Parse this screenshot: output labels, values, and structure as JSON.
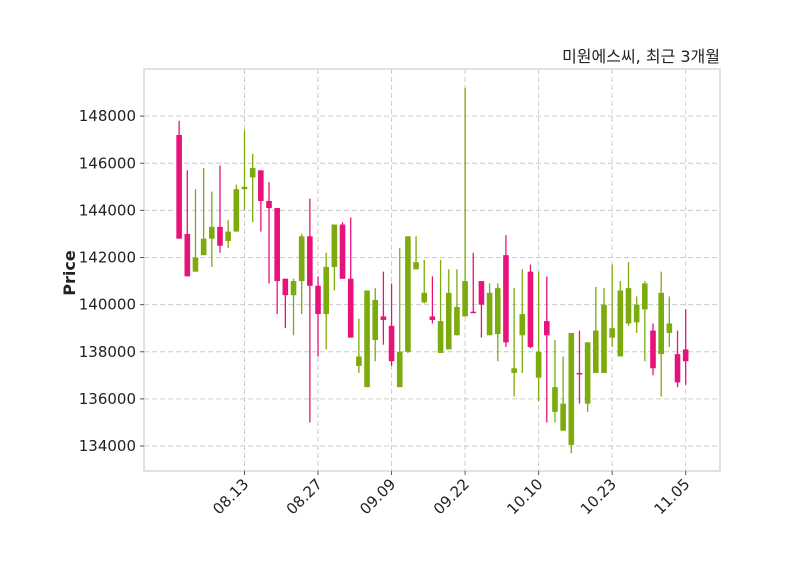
{
  "chart_data": {
    "type": "candlestick",
    "title": "미원에스씨, 최근 3개월",
    "xlabel": "",
    "ylabel": "Price",
    "ylim": [
      132940,
      150000
    ],
    "xlim": [
      -4.3,
      66.2
    ],
    "grid": true,
    "colors": {
      "up": "#7cab0d",
      "down": "#e8137a",
      "grid": "#cccccc",
      "frame": "#d9d9d9"
    },
    "yticks": [
      134000,
      136000,
      138000,
      140000,
      142000,
      144000,
      146000,
      148000
    ],
    "xticks": [
      {
        "index": 8,
        "label": "08.13"
      },
      {
        "index": 17,
        "label": "08.27"
      },
      {
        "index": 26,
        "label": "09.09"
      },
      {
        "index": 35,
        "label": "09.22"
      },
      {
        "index": 44,
        "label": "10.10"
      },
      {
        "index": 53,
        "label": "10.23"
      },
      {
        "index": 62,
        "label": "11.05"
      }
    ],
    "columns": [
      "open",
      "high",
      "low",
      "close"
    ],
    "ohlc": [
      [
        147200,
        147800,
        142800,
        142800
      ],
      [
        143000,
        145700,
        141200,
        141200
      ],
      [
        141400,
        144900,
        141400,
        142000
      ],
      [
        142100,
        145800,
        142100,
        142800
      ],
      [
        142800,
        144800,
        141600,
        143300
      ],
      [
        143300,
        145900,
        142200,
        142500
      ],
      [
        142700,
        143600,
        142400,
        143100
      ],
      [
        143100,
        145100,
        143100,
        144900
      ],
      [
        144900,
        147400,
        144000,
        145000
      ],
      [
        145400,
        146400,
        143500,
        145800
      ],
      [
        145700,
        145700,
        143100,
        144400
      ],
      [
        144400,
        145200,
        140900,
        144100
      ],
      [
        144100,
        144100,
        139600,
        141000
      ],
      [
        141100,
        141100,
        139000,
        140400
      ],
      [
        140400,
        141100,
        138700,
        141000
      ],
      [
        141000,
        143000,
        139600,
        142900
      ],
      [
        142900,
        144500,
        135000,
        140800
      ],
      [
        140800,
        141200,
        137800,
        139600
      ],
      [
        139600,
        142200,
        138100,
        141600
      ],
      [
        141600,
        143400,
        140600,
        143400
      ],
      [
        143400,
        143500,
        141100,
        141100
      ],
      [
        141100,
        143700,
        138600,
        138600
      ],
      [
        137400,
        139400,
        137100,
        137800
      ],
      [
        136500,
        140600,
        136500,
        140600
      ],
      [
        138500,
        140700,
        137600,
        140200
      ],
      [
        139500,
        141400,
        138300,
        139350
      ],
      [
        139100,
        140900,
        137400,
        137600
      ],
      [
        136500,
        142400,
        136500,
        138000
      ],
      [
        138000,
        142900,
        137950,
        142900
      ],
      [
        141500,
        142900,
        141500,
        141800
      ],
      [
        140100,
        141900,
        140050,
        140500
      ],
      [
        139500,
        141200,
        139200,
        139350
      ],
      [
        137950,
        141900,
        137950,
        139300
      ],
      [
        138100,
        141500,
        138100,
        140500
      ],
      [
        138700,
        141500,
        138700,
        139900
      ],
      [
        139500,
        149200,
        139500,
        141000
      ],
      [
        139700,
        142200,
        139650,
        139650
      ],
      [
        141000,
        141000,
        138600,
        140000
      ],
      [
        138700,
        140900,
        138700,
        140500
      ],
      [
        138750,
        140900,
        137600,
        140700
      ],
      [
        142100,
        142950,
        138200,
        138400
      ],
      [
        137100,
        140700,
        136100,
        137300
      ],
      [
        138700,
        141500,
        137100,
        139600
      ],
      [
        141400,
        141700,
        138150,
        138200
      ],
      [
        136900,
        141400,
        135900,
        138000
      ],
      [
        139300,
        141200,
        135000,
        138700
      ],
      [
        135450,
        138500,
        135000,
        136500
      ],
      [
        134650,
        137800,
        134650,
        135800
      ],
      [
        134050,
        138800,
        133700,
        138800
      ],
      [
        137100,
        138900,
        135800,
        137050
      ],
      [
        135800,
        138400,
        135450,
        138400
      ],
      [
        137100,
        140750,
        137100,
        138900
      ],
      [
        137100,
        140700,
        137100,
        140000
      ],
      [
        138600,
        141700,
        138200,
        139000
      ],
      [
        137800,
        141000,
        137800,
        140600
      ],
      [
        139200,
        141800,
        139100,
        140700
      ],
      [
        139250,
        140350,
        138800,
        140000
      ],
      [
        139800,
        141000,
        137600,
        140900
      ],
      [
        138900,
        139200,
        137000,
        137300
      ],
      [
        137900,
        141400,
        136100,
        140500
      ],
      [
        138800,
        140350,
        138200,
        139200
      ],
      [
        137900,
        138900,
        136500,
        136700
      ],
      [
        138100,
        139800,
        136600,
        137600
      ]
    ]
  }
}
